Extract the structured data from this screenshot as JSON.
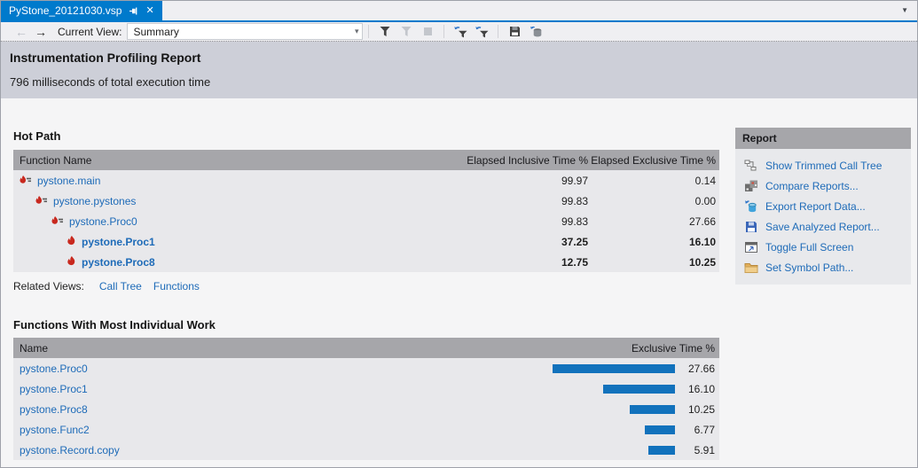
{
  "tab": {
    "title": "PyStone_20121030.vsp"
  },
  "toolbar": {
    "current_view_label": "Current View:",
    "view_value": "Summary",
    "icon_groups": [
      [
        {
          "name": "filter-icon",
          "enabled": true
        },
        {
          "name": "clear-filter-icon",
          "enabled": false
        },
        {
          "name": "stop-icon",
          "enabled": false
        }
      ],
      [
        {
          "name": "refresh-filter-icon",
          "enabled": true
        },
        {
          "name": "apply-filter-icon",
          "enabled": true
        }
      ],
      [
        {
          "name": "save-report-icon",
          "enabled": true
        },
        {
          "name": "export-report-data-icon",
          "enabled": true
        }
      ]
    ]
  },
  "header": {
    "title": "Instrumentation Profiling Report",
    "subtitle": "796 milliseconds of total execution time"
  },
  "hot_path": {
    "title": "Hot Path",
    "columns": [
      "Function Name",
      "Elapsed Inclusive Time %",
      "Elapsed Exclusive Time %"
    ],
    "rows": [
      {
        "name": "pystone.main",
        "inclusive": "99.97",
        "exclusive": "0.14",
        "level": 0,
        "bold": false,
        "icon": "hot-path-flame-icon"
      },
      {
        "name": "pystone.pystones",
        "inclusive": "99.83",
        "exclusive": "0.00",
        "level": 1,
        "bold": false,
        "icon": "hot-path-flame-icon"
      },
      {
        "name": "pystone.Proc0",
        "inclusive": "99.83",
        "exclusive": "27.66",
        "level": 2,
        "bold": false,
        "icon": "hot-path-flame-icon"
      },
      {
        "name": "pystone.Proc1",
        "inclusive": "37.25",
        "exclusive": "16.10",
        "level": 3,
        "bold": true,
        "icon": "flame-icon"
      },
      {
        "name": "pystone.Proc8",
        "inclusive": "12.75",
        "exclusive": "10.25",
        "level": 3,
        "bold": true,
        "icon": "flame-icon"
      }
    ],
    "related_views_label": "Related Views:",
    "related_views": [
      "Call Tree",
      "Functions"
    ]
  },
  "individual_work": {
    "title": "Functions With Most Individual Work",
    "columns": [
      "Name",
      "Exclusive Time %"
    ],
    "rows": [
      {
        "name": "pystone.Proc0",
        "value": 27.66,
        "display": "27.66"
      },
      {
        "name": "pystone.Proc1",
        "value": 16.1,
        "display": "16.10"
      },
      {
        "name": "pystone.Proc8",
        "value": 10.25,
        "display": "10.25"
      },
      {
        "name": "pystone.Func2",
        "value": 6.77,
        "display": "6.77"
      },
      {
        "name": "pystone.Record.copy",
        "value": 5.91,
        "display": "5.91"
      }
    ],
    "bar_color": "#1272BC"
  },
  "report_panel": {
    "title": "Report",
    "items": [
      {
        "label": "Show Trimmed Call Tree",
        "icon": "call-tree-icon"
      },
      {
        "label": "Compare Reports...",
        "icon": "compare-reports-icon"
      },
      {
        "label": "Export Report Data...",
        "icon": "export-data-icon"
      },
      {
        "label": "Save Analyzed Report...",
        "icon": "save-icon"
      },
      {
        "label": "Toggle Full Screen",
        "icon": "fullscreen-icon"
      },
      {
        "label": "Set Symbol Path...",
        "icon": "folder-icon"
      }
    ]
  },
  "colors": {
    "accent": "#007ACC",
    "link": "#1E6BB8",
    "bar": "#1272BC",
    "flame": "#C8281E",
    "table_header": "#A6A6AA",
    "header_band": "#CDCFD8"
  }
}
